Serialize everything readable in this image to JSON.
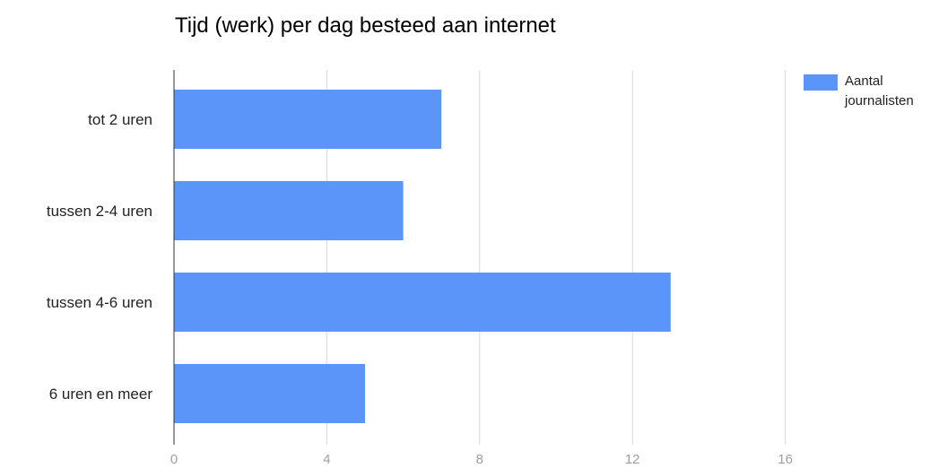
{
  "chart_data": {
    "type": "bar",
    "orientation": "horizontal",
    "title": "Tijd (werk) per dag besteed aan internet",
    "categories": [
      "tot 2 uren",
      "tussen 2-4 uren",
      "tussen 4-6 uren",
      "6 uren en meer"
    ],
    "series": [
      {
        "name": "Aantal journalisten",
        "values": [
          7,
          6,
          13,
          5
        ],
        "color": "#5b95f9"
      }
    ],
    "xlim": [
      0,
      20
    ],
    "xticks": [
      0,
      4,
      8,
      12,
      16
    ],
    "grid": true,
    "legend_position": "top-right"
  }
}
